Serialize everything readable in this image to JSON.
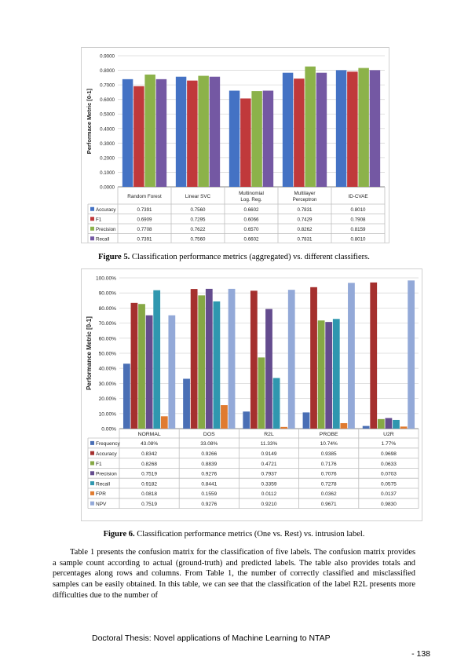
{
  "figure5": {
    "caption_label": "Figure 5.",
    "caption_text": "Classification performance metrics (aggregated) vs. different classifiers.",
    "chart_data": {
      "type": "bar",
      "ylabel": "Performace Metric [0-1]",
      "ylim": [
        0,
        0.9
      ],
      "yticks": [
        "0.0000",
        "0.1000",
        "0.2000",
        "0.3000",
        "0.4000",
        "0.5000",
        "0.6000",
        "0.7000",
        "0.8000",
        "0.9000"
      ],
      "categories": [
        "Random Forest",
        "Linear SVC",
        "Multinomial Log. Reg.",
        "Multilayer Perceptron",
        "ID-CVAE"
      ],
      "category_lines": [
        [
          "Random Forest"
        ],
        [
          "Linear SVC"
        ],
        [
          "Multinomial",
          "Log. Reg."
        ],
        [
          "Multilayer",
          "Perceptron"
        ],
        [
          "ID-CVAE"
        ]
      ],
      "grid": true,
      "legend": "data-table",
      "series": [
        {
          "name": "Accuracy",
          "color": "#4472C4",
          "values": [
            0.7391,
            0.756,
            0.6602,
            0.7831,
            0.801
          ],
          "labels": [
            "0.7391",
            "0.7560",
            "0.6602",
            "0.7831",
            "0.8010"
          ]
        },
        {
          "name": "F1",
          "color": "#C0393B",
          "values": [
            0.6909,
            0.7295,
            0.6066,
            0.7429,
            0.7908
          ],
          "labels": [
            "0.6909",
            "0.7295",
            "0.6066",
            "0.7429",
            "0.7908"
          ]
        },
        {
          "name": "Precision",
          "color": "#8CB24A",
          "values": [
            0.7708,
            0.7622,
            0.657,
            0.8262,
            0.8159
          ],
          "labels": [
            "0.7708",
            "0.7622",
            "0.6570",
            "0.8262",
            "0.8159"
          ]
        },
        {
          "name": "Recall",
          "color": "#7458A3",
          "values": [
            0.7391,
            0.756,
            0.6602,
            0.7831,
            0.801
          ],
          "labels": [
            "0.7391",
            "0.7560",
            "0.6602",
            "0.7831",
            "0.8010"
          ]
        }
      ]
    }
  },
  "figure6": {
    "caption_label": "Figure 6.",
    "caption_text": "Classification performance metrics (One vs. Rest) vs. intrusion label.",
    "chart_data": {
      "type": "bar",
      "ylabel": "Performance Metric [0-1]",
      "ylim": [
        0,
        1.0
      ],
      "yticks": [
        "0.00%",
        "10.00%",
        "20.00%",
        "30.00%",
        "40.00%",
        "50.00%",
        "60.00%",
        "70.00%",
        "80.00%",
        "90.00%",
        "100.00%"
      ],
      "categories": [
        "NORMAL",
        "DOS",
        "R2L",
        "PROBE",
        "U2R"
      ],
      "grid": true,
      "legend": "data-table",
      "series": [
        {
          "name": "Frequency",
          "color": "#4A6FB5",
          "values": [
            0.4308,
            0.3308,
            0.1133,
            0.1074,
            0.0177
          ],
          "labels": [
            "43.08%",
            "33.08%",
            "11.33%",
            "10.74%",
            "1.77%"
          ]
        },
        {
          "name": "Accuracy",
          "color": "#A5302E",
          "values": [
            0.8342,
            0.9266,
            0.9149,
            0.9385,
            0.9698
          ],
          "labels": [
            "0.8342",
            "0.9266",
            "0.9149",
            "0.9385",
            "0.9698"
          ]
        },
        {
          "name": "F1",
          "color": "#86A845",
          "values": [
            0.8268,
            0.8839,
            0.4721,
            0.7176,
            0.0633
          ],
          "labels": [
            "0.8268",
            "0.8839",
            "0.4721",
            "0.7176",
            "0.0633"
          ]
        },
        {
          "name": "Precision",
          "color": "#644C8E",
          "values": [
            0.7519,
            0.9276,
            0.7937,
            0.7076,
            0.0703
          ],
          "labels": [
            "0.7519",
            "0.9276",
            "0.7937",
            "0.7076",
            "0.0703"
          ]
        },
        {
          "name": "Recall",
          "color": "#2F97AF",
          "values": [
            0.9182,
            0.8441,
            0.3359,
            0.7278,
            0.0575
          ],
          "labels": [
            "0.9182",
            "0.8441",
            "0.3359",
            "0.7278",
            "0.0575"
          ]
        },
        {
          "name": "FPR",
          "color": "#E07B30",
          "values": [
            0.0818,
            0.1559,
            0.0112,
            0.0362,
            0.0137
          ],
          "labels": [
            "0.0818",
            "0.1559",
            "0.0112",
            "0.0362",
            "0.0137"
          ]
        },
        {
          "name": "NPV",
          "color": "#93A9D8",
          "values": [
            0.7519,
            0.9276,
            0.921,
            0.9671,
            0.983
          ],
          "labels": [
            "0.7519",
            "0.9276",
            "0.9210",
            "0.9671",
            "0.9830"
          ]
        }
      ]
    }
  },
  "body_paragraph": "Table 1 presents the confusion matrix for the classification of five labels. The confusion matrix provides a sample count according to actual (ground-truth) and predicted labels. The table also provides totals and percentages along rows and columns. From Table 1, the number of correctly classified and misclassified samples can be easily obtained. In this table, we can see that the classification of the label R2L presents more difficulties due to the number of",
  "footer": "Doctoral Thesis: Novel applications of Machine Learning to NTAP",
  "page_number": "- 138"
}
